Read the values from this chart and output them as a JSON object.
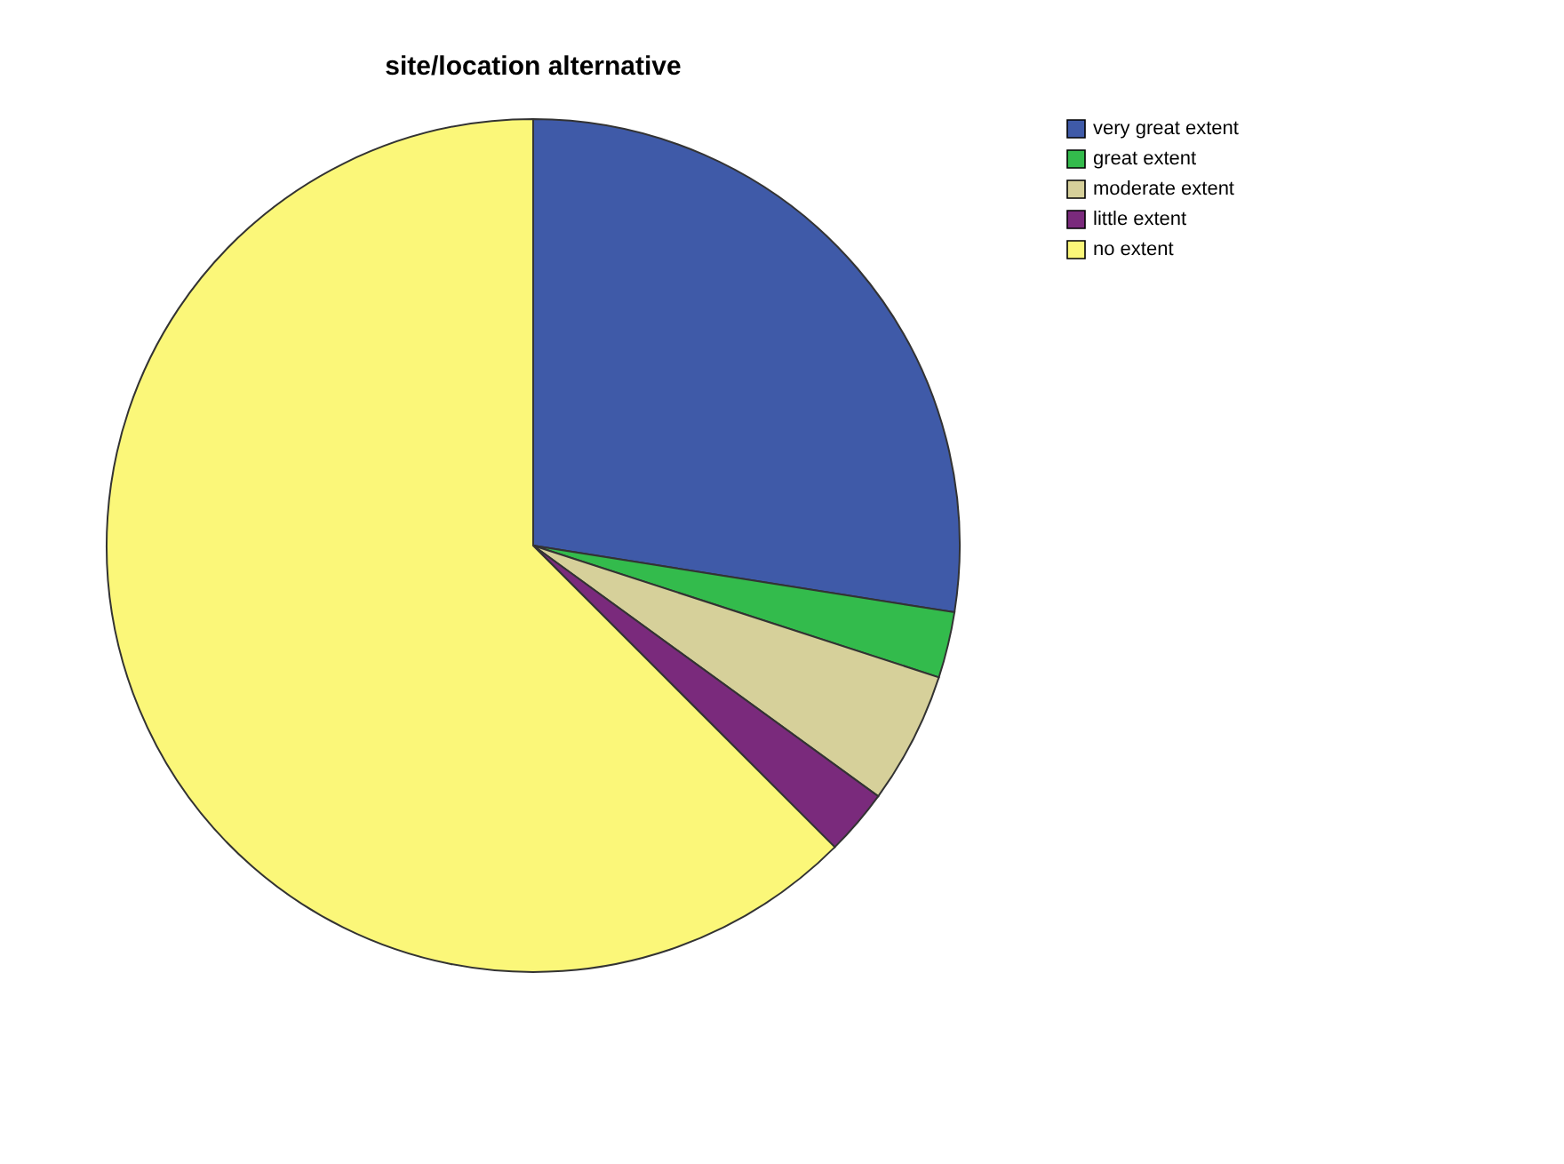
{
  "chart_data": {
    "type": "pie",
    "title": "site/location alternative",
    "categories": [
      "very great extent",
      "great extent",
      "moderate extent",
      "little extent",
      "no extent"
    ],
    "values": [
      27.5,
      2.5,
      5,
      2.5,
      62.5
    ],
    "colors": [
      "#3f5aa8",
      "#33bb4c",
      "#d6d09a",
      "#7a2a7c",
      "#fbf779"
    ],
    "legend": "top right"
  }
}
